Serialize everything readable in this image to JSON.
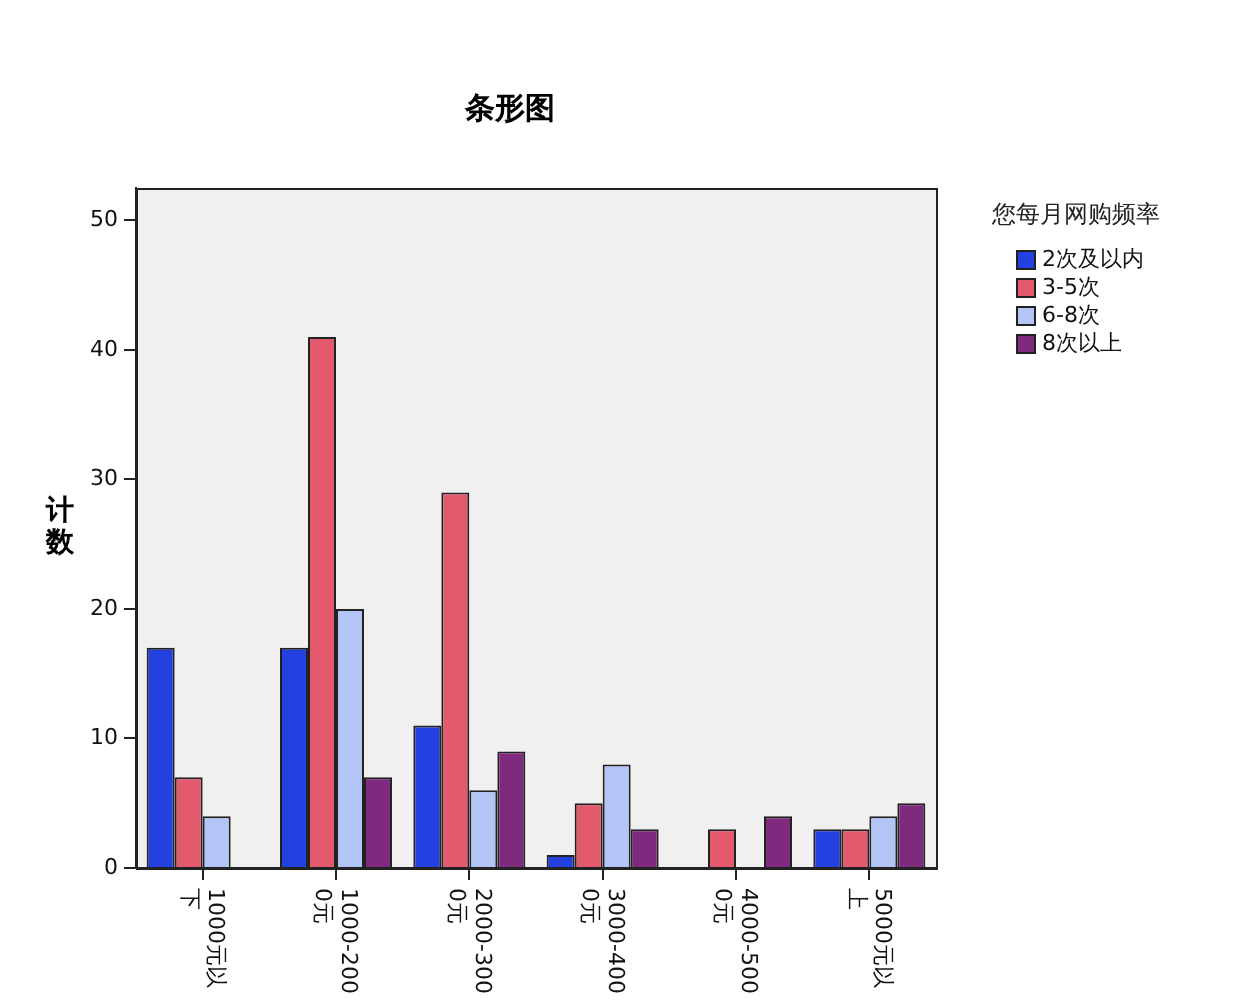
{
  "chart_data": {
    "type": "bar",
    "title": "条形图",
    "ylabel": "计数",
    "legend_title": "您每月网购频率",
    "categories": [
      "1000元以下",
      "1000-2000元",
      "2000-3000元",
      "3000-4000元",
      "4000-5000元",
      "5000元以上"
    ],
    "series": [
      {
        "name": "2次及以内",
        "color": "#2341e0",
        "values": [
          17,
          17,
          11,
          1,
          0,
          3
        ]
      },
      {
        "name": "3-5次",
        "color": "#e35a6c",
        "values": [
          7,
          41,
          29,
          5,
          3,
          3
        ]
      },
      {
        "name": "6-8次",
        "color": "#b3c5f7",
        "values": [
          4,
          20,
          6,
          8,
          0,
          4
        ]
      },
      {
        "name": "8次以上",
        "color": "#7e2a7e",
        "values": [
          0,
          7,
          9,
          3,
          4,
          5
        ]
      }
    ],
    "ylim": [
      0,
      52.5
    ],
    "yticks": [
      0,
      10,
      20,
      30,
      40,
      50
    ],
    "grid": false,
    "legend": "top right"
  }
}
